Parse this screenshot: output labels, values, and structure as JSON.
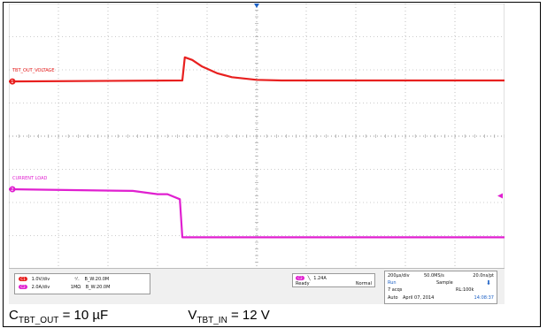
{
  "chart_data": {
    "type": "line",
    "title": "",
    "xlabel": "",
    "ylabel": "",
    "divisions": {
      "x": 10,
      "y": 8
    },
    "series": [
      {
        "name": "TBT_OUT_VOLTAGE",
        "color": "#e8201f",
        "x": [
          0,
          3.5,
          3.55,
          3.7,
          3.9,
          4.2,
          4.5,
          5.0,
          5.5,
          10
        ],
        "y": [
          1.65,
          1.68,
          2.38,
          2.3,
          2.1,
          1.9,
          1.78,
          1.7,
          1.68,
          1.68
        ]
      },
      {
        "name": "CURRENT LOAD",
        "color": "#e020d0",
        "x": [
          0,
          2.5,
          3.0,
          3.2,
          3.45,
          3.5,
          10
        ],
        "y": [
          -1.6,
          -1.65,
          -1.75,
          -1.75,
          -1.9,
          -3.05,
          -3.05
        ]
      }
    ],
    "annotations": [
      "TBT_OUT_VOLTAGE",
      "CURRENT LOAD"
    ]
  },
  "scope_panel": {
    "ch1": {
      "badge": "C1",
      "scale": "1.0V/div",
      "coupling": "⁺⁄₋",
      "bw": "B_W:20.0M"
    },
    "ch2": {
      "badge": "C2",
      "scale": "2.0A/div",
      "impedance": "1MΩ",
      "bw": "B_W:20.0M"
    },
    "trigger": {
      "badge": "C2",
      "level": "1.24A",
      "state": "Ready",
      "mode": "Normal"
    },
    "acq": {
      "timebase": "200µs/div",
      "rate": "50.0MS/s",
      "resolution": "20.0ns/pt",
      "run": "Run",
      "sample": "Sample",
      "acqs": "7 acqs",
      "rl": "RL:100k",
      "auto": "Auto",
      "date": "April 07, 2014",
      "time": "14:08:37"
    }
  },
  "caption": {
    "left_main": "C",
    "left_sub": "TBT_OUT",
    "left_value": " = 10 µF",
    "right_main": "V",
    "right_sub": "TBT_IN",
    "right_value": " = 12 V"
  },
  "colors": {
    "ch1": "#e8201f",
    "ch2": "#e020d0",
    "grid": "#9a9a9a"
  }
}
